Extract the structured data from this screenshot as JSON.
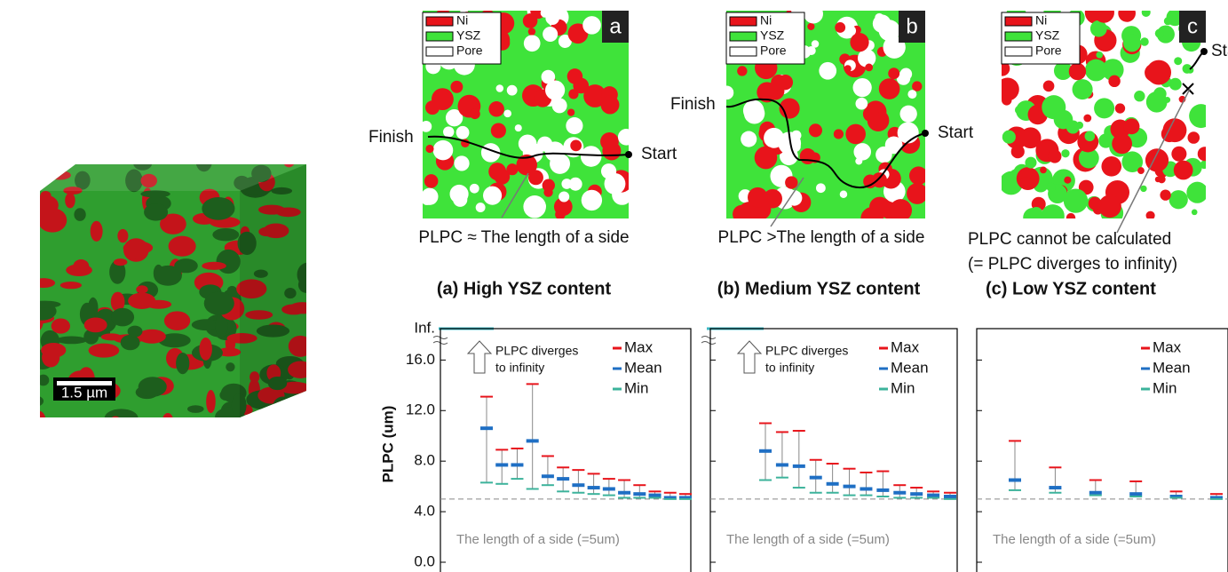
{
  "cube": {
    "scale_bar": "1.5 µm"
  },
  "panels": [
    {
      "letter": "a",
      "legend": [
        "Ni",
        "YSZ",
        "Pore"
      ],
      "finish": "Finish",
      "start": "Start",
      "caption": [
        "PLPC ≈ The length of a side"
      ]
    },
    {
      "letter": "b",
      "legend": [
        "Ni",
        "YSZ",
        "Pore"
      ],
      "finish": "Finish",
      "start": "Start",
      "caption": [
        "PLPC >The length of a side"
      ]
    },
    {
      "letter": "c",
      "legend": [
        "Ni",
        "YSZ",
        "Pore"
      ],
      "start": "Start",
      "caption": [
        "PLPC cannot be calculated",
        "(= PLPC diverges to infinity)"
      ]
    }
  ],
  "chart_data": [
    {
      "type": "errorbar",
      "title": "(a) High YSZ content",
      "y_label": "PLPC (um)",
      "inf_label": "Inf.",
      "annotation": [
        "PLPC diverges",
        "to infinity"
      ],
      "reference": {
        "value": 5,
        "label": "The length  of a side (=5um)"
      },
      "categories": [
        null,
        null,
        null,
        null,
        null,
        null,
        null,
        null,
        null,
        null,
        null,
        null,
        null,
        null
      ],
      "series": [
        {
          "name": "Max",
          "color": "#e8141b",
          "values": [
            13.1,
            8.9,
            9.0,
            14.1,
            8.4,
            7.5,
            7.3,
            7.0,
            6.6,
            6.5,
            6.1,
            5.6,
            5.5,
            5.4
          ]
        },
        {
          "name": "Mean",
          "color": "#1f6fc4",
          "values": [
            10.6,
            7.7,
            7.7,
            9.6,
            6.8,
            6.6,
            6.1,
            5.9,
            5.8,
            5.5,
            5.4,
            5.3,
            5.1,
            5.1
          ]
        },
        {
          "name": "Min",
          "color": "#3cb39b",
          "values": [
            6.3,
            6.2,
            6.6,
            5.8,
            6.1,
            5.6,
            5.5,
            5.4,
            5.3,
            5.1,
            5.1,
            5.1,
            5.0,
            5.0
          ]
        }
      ],
      "ylim": [
        0,
        17.5
      ],
      "yticks": [
        {
          "value": 0,
          "label": "0.0"
        },
        {
          "value": 4,
          "label": "4.0"
        },
        {
          "value": 8,
          "label": "8.0"
        },
        {
          "value": 12,
          "label": "12.0"
        },
        {
          "value": 16,
          "label": "16.0"
        }
      ],
      "ytick_labels": true,
      "legend": "top-right"
    },
    {
      "type": "errorbar",
      "title": "(b) Medium YSZ content",
      "annotation": [
        "PLPC diverges",
        "to infinity"
      ],
      "reference": {
        "value": 5,
        "label": "The length  of a side (=5um)"
      },
      "categories": [
        null,
        null,
        null,
        null,
        null,
        null,
        null,
        null,
        null,
        null,
        null,
        null
      ],
      "series": [
        {
          "name": "Max",
          "color": "#e8141b",
          "values": [
            11.0,
            10.3,
            10.4,
            8.1,
            7.8,
            7.4,
            7.1,
            7.2,
            6.1,
            5.9,
            5.6,
            5.5
          ]
        },
        {
          "name": "Mean",
          "color": "#1f6fc4",
          "values": [
            8.8,
            7.7,
            7.6,
            6.7,
            6.2,
            6.0,
            5.8,
            5.7,
            5.5,
            5.4,
            5.3,
            5.2
          ]
        },
        {
          "name": "Min",
          "color": "#3cb39b",
          "values": [
            6.5,
            6.7,
            5.9,
            5.5,
            5.5,
            5.3,
            5.3,
            5.2,
            5.1,
            5.1,
            5.1,
            5.0
          ]
        }
      ],
      "ylim": [
        0,
        17.5
      ],
      "yticks": [
        0,
        4,
        8,
        12,
        16
      ],
      "ytick_labels": false,
      "legend": "top-right"
    },
    {
      "type": "errorbar",
      "title": "(c) Low YSZ content",
      "reference": {
        "value": 5,
        "label": "The length  of a side (=5um)"
      },
      "categories": [
        null,
        null,
        null,
        null,
        null,
        null
      ],
      "series": [
        {
          "name": "Max",
          "color": "#e8141b",
          "values": [
            9.6,
            7.5,
            6.5,
            6.4,
            5.6,
            5.4
          ]
        },
        {
          "name": "Mean",
          "color": "#1f6fc4",
          "values": [
            6.5,
            5.9,
            5.5,
            5.4,
            5.2,
            5.1
          ]
        },
        {
          "name": "Min",
          "color": "#3cb39b",
          "values": [
            5.7,
            5.5,
            5.3,
            5.2,
            5.1,
            5.0
          ]
        }
      ],
      "ylim": [
        0,
        17.5
      ],
      "yticks": [
        0,
        4,
        8,
        12,
        16
      ],
      "ytick_labels": false,
      "legend": "top-right"
    }
  ]
}
